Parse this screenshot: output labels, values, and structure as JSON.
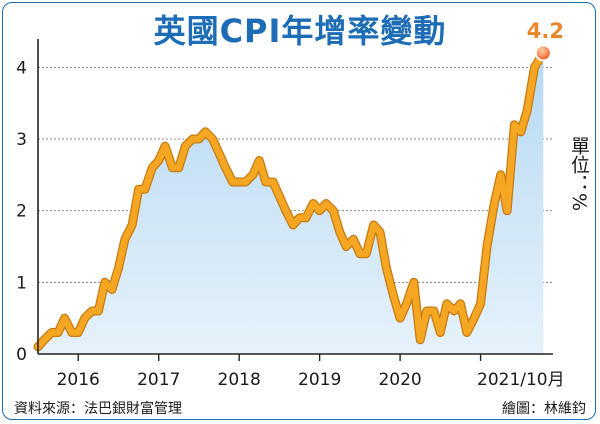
{
  "header": {
    "title": "英國CPI年增率變動"
  },
  "unit_label": "單位：%",
  "footer": {
    "source": "資料來源：法巴銀財富管理",
    "credit": "繪圖：林維鈞"
  },
  "colors": {
    "title": "#1d6cb6",
    "line": "#f5a623",
    "line_outline": "#c77a10",
    "area_top": "#b6d9f2",
    "area_bottom": "#e6f2fb",
    "marker": "#ef5a24",
    "peak_label": "#e8872a",
    "grid": "#8a8a8a"
  },
  "chart_data": {
    "type": "area",
    "title": "英國CPI年增率變動",
    "ylabel": "單位：%",
    "ylim": [
      0,
      4.2
    ],
    "yticks": [
      0,
      1,
      2,
      3,
      4
    ],
    "xlim": [
      2015.5,
      2021.9
    ],
    "xticks": [
      {
        "value": 2016.0,
        "label": "2016"
      },
      {
        "value": 2017.0,
        "label": "2017"
      },
      {
        "value": 2018.0,
        "label": "2018"
      },
      {
        "value": 2019.0,
        "label": "2019"
      },
      {
        "value": 2020.0,
        "label": "2020"
      },
      {
        "value": 2021.5,
        "label": "2021/10月"
      }
    ],
    "grid": true,
    "annotation": {
      "label": "4.2",
      "x": 2021.78,
      "y": 4.2
    },
    "series": [
      {
        "x": [
          2015.5,
          2015.58,
          2015.67,
          2015.75,
          2015.83,
          2015.92,
          2016.0,
          2016.08,
          2016.17,
          2016.25,
          2016.33,
          2016.42,
          2016.5,
          2016.58,
          2016.67,
          2016.75,
          2016.83,
          2016.92,
          2017.0,
          2017.08,
          2017.17,
          2017.25,
          2017.33,
          2017.42,
          2017.5,
          2017.58,
          2017.67,
          2017.75,
          2017.83,
          2017.92,
          2018.0,
          2018.08,
          2018.17,
          2018.25,
          2018.33,
          2018.42,
          2018.5,
          2018.58,
          2018.67,
          2018.75,
          2018.83,
          2018.92,
          2019.0,
          2019.08,
          2019.17,
          2019.25,
          2019.33,
          2019.42,
          2019.5,
          2019.58,
          2019.67,
          2019.75,
          2019.83,
          2019.92,
          2020.0,
          2020.08,
          2020.17,
          2020.25,
          2020.33,
          2020.42,
          2020.5,
          2020.58,
          2020.67,
          2020.75,
          2020.83,
          2020.92,
          2021.0,
          2021.08,
          2021.17,
          2021.25,
          2021.33,
          2021.42,
          2021.5,
          2021.58,
          2021.67,
          2021.78
        ],
        "values": [
          0.1,
          0.2,
          0.3,
          0.3,
          0.5,
          0.3,
          0.3,
          0.5,
          0.6,
          0.6,
          1.0,
          0.9,
          1.2,
          1.6,
          1.8,
          2.3,
          2.3,
          2.6,
          2.7,
          2.9,
          2.6,
          2.6,
          2.9,
          3.0,
          3.0,
          3.1,
          3.0,
          2.8,
          2.6,
          2.4,
          2.4,
          2.4,
          2.5,
          2.7,
          2.4,
          2.4,
          2.2,
          2.0,
          1.8,
          1.9,
          1.9,
          2.1,
          2.0,
          2.1,
          2.0,
          1.7,
          1.5,
          1.6,
          1.4,
          1.4,
          1.8,
          1.7,
          1.2,
          0.8,
          0.5,
          0.7,
          1.0,
          0.2,
          0.6,
          0.6,
          0.3,
          0.7,
          0.6,
          0.7,
          0.3,
          0.5,
          0.7,
          1.5,
          2.1,
          2.5,
          2.0,
          3.2,
          3.1,
          3.4,
          4.0,
          4.2
        ]
      }
    ]
  }
}
